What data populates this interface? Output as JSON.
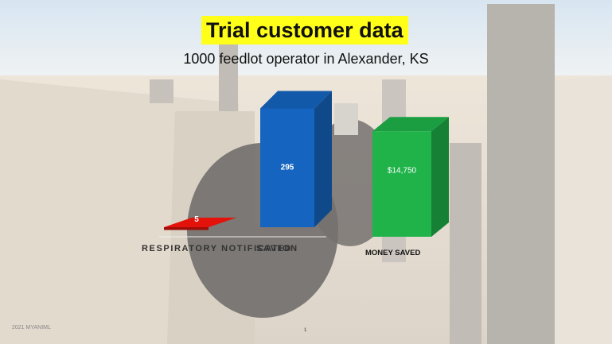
{
  "title": "Trial customer data",
  "subtitle": "1000 feedlot operator in Alexander, KS",
  "footer": "2021 MYANIML",
  "page_number": "1",
  "colors": {
    "title_highlight": "#ffff1a",
    "respiratory_bar": "#e3120b",
    "saved_bar": "#1565c0",
    "money_bar": "#1fb34a"
  },
  "chart_data": [
    {
      "type": "bar",
      "categories": [
        "RESPIRATORY NOTIFICATION",
        "SAVED"
      ],
      "values": [
        5,
        295
      ],
      "data_labels": [
        "5",
        "295"
      ],
      "title": "",
      "xlabel": "",
      "ylabel": "",
      "ylim": [
        0,
        300
      ],
      "grid": false,
      "style": "3d-column"
    },
    {
      "type": "bar",
      "categories": [
        "MONEY SAVED"
      ],
      "values": [
        14750
      ],
      "data_labels": [
        "$14,750"
      ],
      "title": "",
      "xlabel": "",
      "ylabel": "",
      "ylim": [
        0,
        15000
      ],
      "grid": false,
      "style": "3d-column"
    }
  ]
}
